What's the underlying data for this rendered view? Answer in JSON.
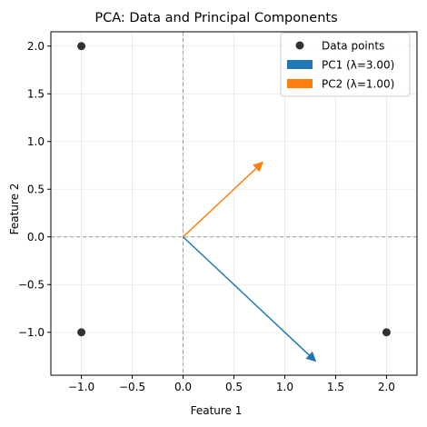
{
  "chart_data": {
    "type": "scatter",
    "title": "PCA: Data and Principal Components",
    "xlabel": "Feature 1",
    "ylabel": "Feature 2",
    "xlim": [
      -1.3,
      2.3
    ],
    "ylim": [
      -1.45,
      2.15
    ],
    "x_ticks": [
      -1.0,
      -0.5,
      0.0,
      0.5,
      1.0,
      1.5,
      2.0
    ],
    "x_tick_labels": [
      "−1.0",
      "−0.5",
      "0.0",
      "0.5",
      "1.0",
      "1.5",
      "2.0"
    ],
    "y_ticks": [
      -1.0,
      -0.5,
      0.0,
      0.5,
      1.0,
      1.5,
      2.0
    ],
    "y_tick_labels": [
      "−1.0",
      "−0.5",
      "0.0",
      "0.5",
      "1.0",
      "1.5",
      "2.0"
    ],
    "grid": true,
    "reference_lines": {
      "x": 0,
      "y": 0
    },
    "points": {
      "name": "Data points",
      "color": "#333333",
      "x": [
        -1.0,
        -1.0,
        2.0
      ],
      "y": [
        2.0,
        -1.0,
        -1.0
      ]
    },
    "vectors": [
      {
        "name": "PC1 (λ=3.00)",
        "color": "#1f77b4",
        "from": [
          0,
          0
        ],
        "to": [
          1.31,
          -1.31
        ]
      },
      {
        "name": "PC2 (λ=1.00)",
        "color": "#ff7f0e",
        "from": [
          0,
          0
        ],
        "to": [
          0.79,
          0.79
        ]
      }
    ],
    "legend_position": "top-right"
  }
}
